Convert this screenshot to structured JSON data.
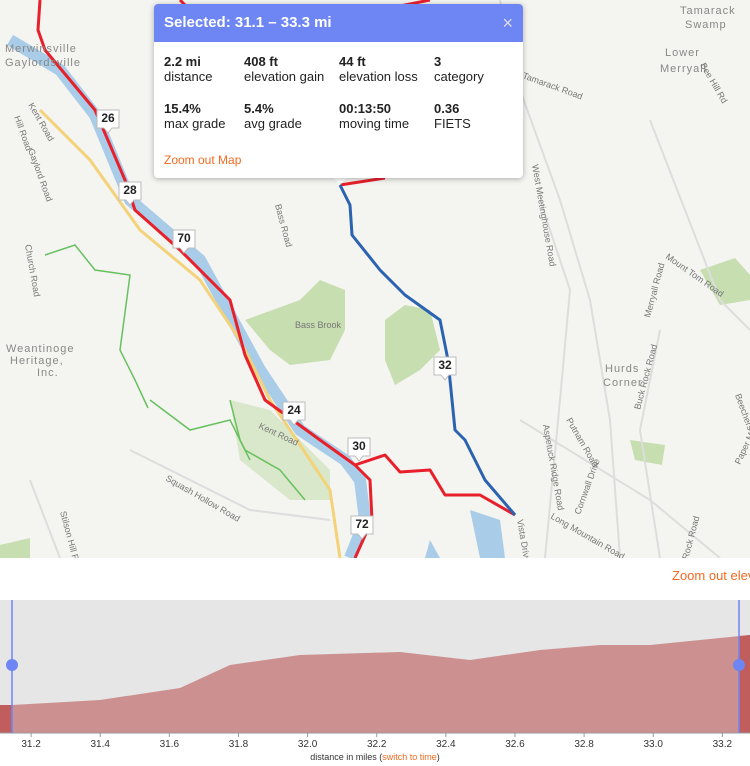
{
  "popup": {
    "title": "Selected: 31.1 – 33.3 mi",
    "close": "×",
    "stats": [
      {
        "value": "2.2 mi",
        "label": "distance"
      },
      {
        "value": "408 ft",
        "label": "elevation gain"
      },
      {
        "value": "44 ft",
        "label": "elevation loss"
      },
      {
        "value": "3",
        "label": "category"
      },
      {
        "value": "15.4%",
        "label": "max grade"
      },
      {
        "value": "5.4%",
        "label": "avg grade"
      },
      {
        "value": "00:13:50",
        "label": "moving time"
      },
      {
        "value": "0.36",
        "label": "FIETS"
      }
    ],
    "zoom_link": "Zoom out Map"
  },
  "map": {
    "markers": [
      "26",
      "28",
      "70",
      "24",
      "30",
      "72",
      "32"
    ],
    "labels": [
      "Merwinsville",
      "Gaylordsville",
      "Kent Road",
      "Gaylord Road",
      "Church Road",
      "Weantinoge",
      "Heritage,",
      "Inc.",
      "Bass Road",
      "Bass Brook",
      "Kent Road",
      "Squash Hollow Road",
      "Stilson Hill Road",
      "Tamarack",
      "Swamp",
      "Lower",
      "Merryall",
      "Tamarack Road",
      "West Meetinghouse Road",
      "Mount Tom Road",
      "Merryall Road",
      "Hurds",
      "Corner",
      "Buck Rock Road",
      "Aspetuck Ridge Road",
      "Putnam Road",
      "Cornwall Drive",
      "Long Mountain Road",
      "Vista Drive",
      "Bee Hill Rd",
      "Beechers",
      "Paper Mill",
      "Rock Road",
      "Hill Road"
    ]
  },
  "elevation": {
    "zoom_link": "Zoom out elevation",
    "xlim": [
      31.11,
      33.28
    ],
    "xticks": [
      31.2,
      31.4,
      31.6,
      31.8,
      {
        "value": 32,
        "label": "32.0"
      },
      32.2,
      32.4,
      32.6,
      32.8,
      {
        "value": 33,
        "label": "33.0"
      },
      33.2
    ],
    "xlabel": "distance in miles",
    "xlabel_open": "(",
    "switch_link": "switch to time",
    "xlabel_close": ")"
  }
}
